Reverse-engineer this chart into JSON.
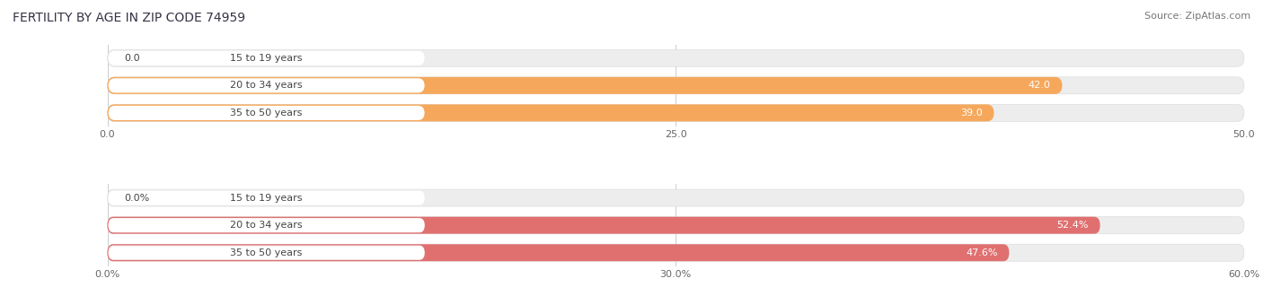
{
  "title": "FERTILITY BY AGE IN ZIP CODE 74959",
  "source": "Source: ZipAtlas.com",
  "top_chart": {
    "categories": [
      "15 to 19 years",
      "20 to 34 years",
      "35 to 50 years"
    ],
    "values": [
      0.0,
      42.0,
      39.0
    ],
    "value_labels": [
      "0.0",
      "42.0",
      "39.0"
    ],
    "max_val": 50.0,
    "tick_labels": [
      "0.0",
      "25.0",
      "50.0"
    ],
    "tick_vals": [
      0.0,
      25.0,
      50.0
    ],
    "bar_color": "#F5A85C",
    "bar_bg_color": "#EDEDED",
    "bar_height": 0.62
  },
  "bottom_chart": {
    "categories": [
      "15 to 19 years",
      "20 to 34 years",
      "35 to 50 years"
    ],
    "values": [
      0.0,
      52.4,
      47.6
    ],
    "value_labels": [
      "0.0%",
      "52.4%",
      "47.6%"
    ],
    "max_val": 60.0,
    "tick_labels": [
      "0.0%",
      "30.0%",
      "60.0%"
    ],
    "tick_vals": [
      0.0,
      30.0,
      60.0
    ],
    "bar_color": "#E07070",
    "bar_bg_color": "#EDEDED",
    "bar_height": 0.62
  },
  "title_fontsize": 10,
  "source_fontsize": 8,
  "label_fontsize": 8,
  "tick_fontsize": 8,
  "cat_fontsize": 8,
  "background_color": "#FFFFFF",
  "title_color": "#333344",
  "source_color": "#777777",
  "cat_label_color": "#444444",
  "grid_color": "#CCCCCC",
  "pill_bg_color": "#FFFFFF"
}
